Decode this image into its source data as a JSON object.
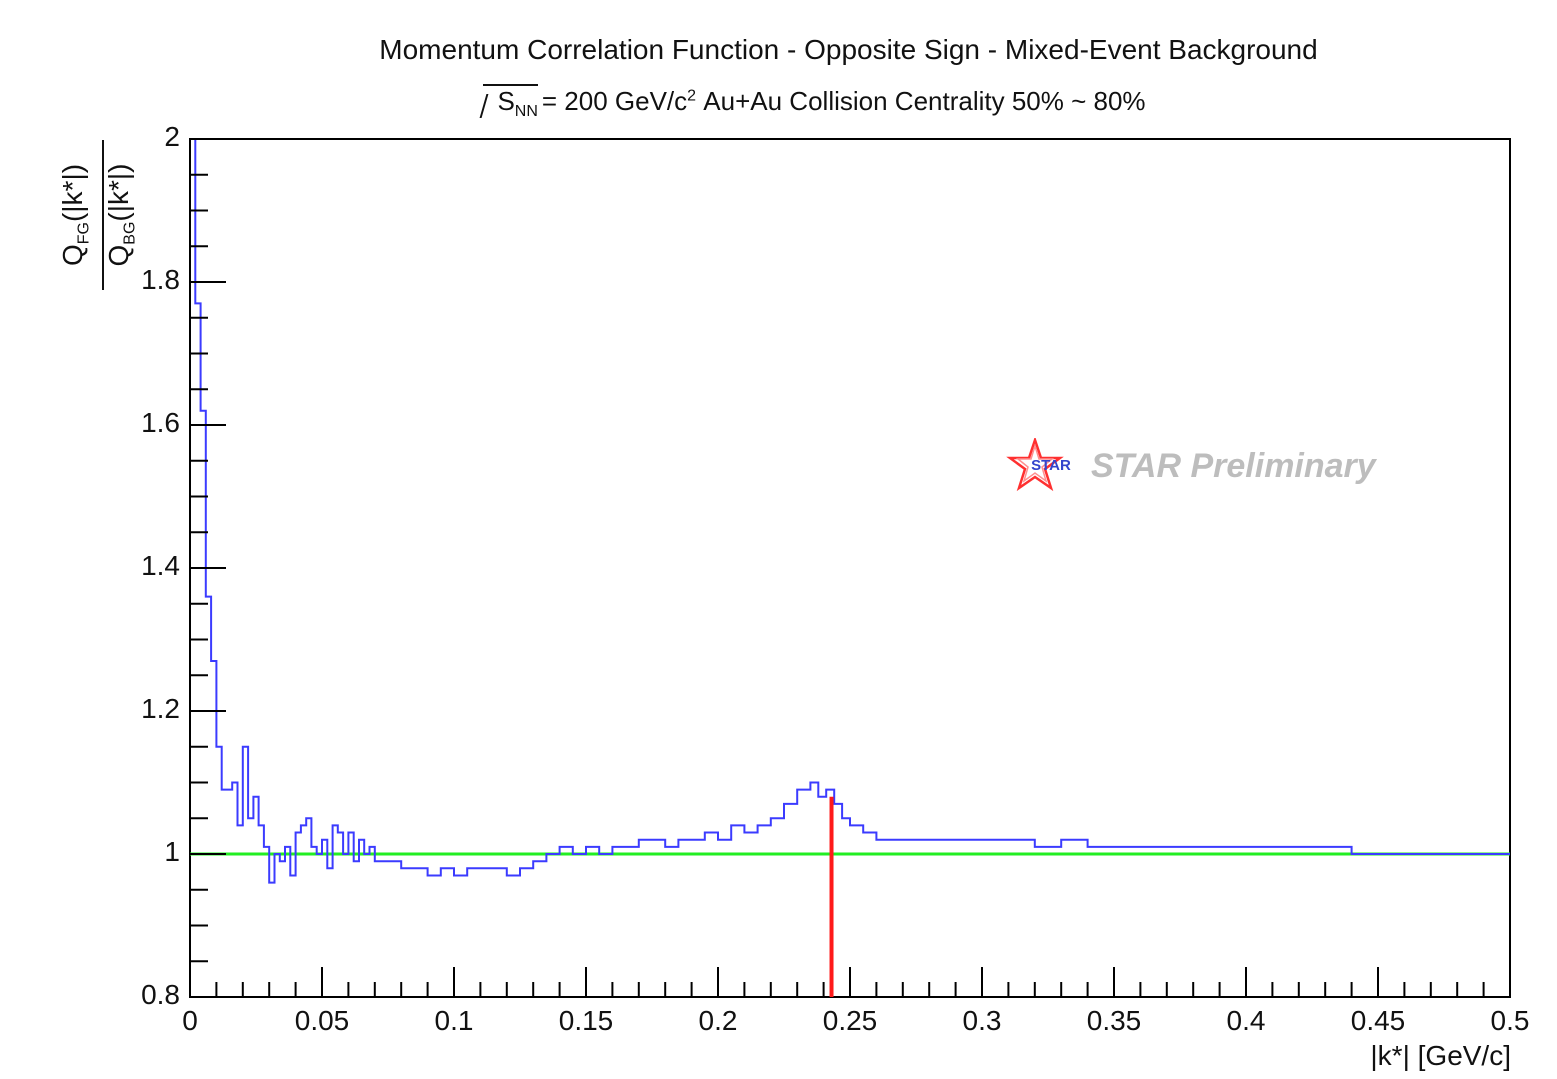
{
  "chart_data": {
    "type": "line",
    "title": "Momentum Correlation Function - Opposite Sign - Mixed-Event Background",
    "subtitle": {
      "sqrt_base": "S",
      "sqrt_sub": "NN",
      "energy": "= 200 GeV/c",
      "energy_sup": "2",
      "rest": "Au+Au Collision Centrality 50% ~ 80%"
    },
    "xlabel": "|k*| [GeV/c]",
    "ylabel": {
      "numerator": "Q",
      "numerator_sub": "FG",
      "numerator_arg": "(|k*|)",
      "denominator": "Q",
      "denominator_sub": "BG",
      "denominator_arg": "(|k*|)"
    },
    "xlim": [
      0,
      0.5
    ],
    "ylim": [
      0.8,
      2.0
    ],
    "x_ticks": [
      "0",
      "0.05",
      "0.1",
      "0.15",
      "0.2",
      "0.25",
      "0.3",
      "0.35",
      "0.4",
      "0.45",
      "0.5"
    ],
    "x_tick_values": [
      0,
      0.05,
      0.1,
      0.15,
      0.2,
      0.25,
      0.3,
      0.35,
      0.4,
      0.45,
      0.5
    ],
    "y_ticks": [
      "0.8",
      "1",
      "1.2",
      "1.4",
      "1.6",
      "1.8",
      "2"
    ],
    "y_tick_values": [
      0.8,
      1.0,
      1.2,
      1.4,
      1.6,
      1.8,
      2.0
    ],
    "grid": false,
    "series": [
      {
        "color": "#3b3bff",
        "style": "step",
        "x": [
          0.002,
          0.004,
          0.006,
          0.008,
          0.01,
          0.012,
          0.014,
          0.016,
          0.018,
          0.02,
          0.022,
          0.024,
          0.026,
          0.028,
          0.03,
          0.032,
          0.034,
          0.036,
          0.038,
          0.04,
          0.042,
          0.044,
          0.046,
          0.048,
          0.05,
          0.052,
          0.054,
          0.056,
          0.058,
          0.06,
          0.062,
          0.064,
          0.066,
          0.068,
          0.07,
          0.075,
          0.08,
          0.085,
          0.09,
          0.095,
          0.1,
          0.105,
          0.11,
          0.115,
          0.12,
          0.125,
          0.13,
          0.135,
          0.14,
          0.145,
          0.15,
          0.155,
          0.16,
          0.165,
          0.17,
          0.175,
          0.18,
          0.185,
          0.19,
          0.195,
          0.2,
          0.205,
          0.21,
          0.215,
          0.22,
          0.225,
          0.23,
          0.235,
          0.238,
          0.241,
          0.244,
          0.247,
          0.25,
          0.255,
          0.26,
          0.265,
          0.27,
          0.275,
          0.28,
          0.29,
          0.3,
          0.31,
          0.32,
          0.33,
          0.34,
          0.35,
          0.36,
          0.37,
          0.38,
          0.39,
          0.4,
          0.41,
          0.42,
          0.43,
          0.44,
          0.45,
          0.46,
          0.47,
          0.48,
          0.49,
          0.5
        ],
        "y": [
          2.0,
          1.77,
          1.62,
          1.36,
          1.27,
          1.15,
          1.09,
          1.09,
          1.1,
          1.04,
          1.15,
          1.05,
          1.08,
          1.04,
          1.01,
          0.96,
          1.0,
          0.99,
          1.01,
          0.97,
          1.03,
          1.04,
          1.05,
          1.01,
          1.0,
          1.02,
          0.98,
          1.04,
          1.03,
          1.0,
          1.03,
          0.99,
          1.02,
          1.0,
          1.01,
          0.99,
          0.99,
          0.98,
          0.98,
          0.97,
          0.98,
          0.97,
          0.98,
          0.98,
          0.98,
          0.97,
          0.98,
          0.99,
          1.0,
          1.01,
          1.0,
          1.01,
          1.0,
          1.01,
          1.01,
          1.02,
          1.02,
          1.01,
          1.02,
          1.02,
          1.03,
          1.02,
          1.04,
          1.03,
          1.04,
          1.05,
          1.07,
          1.09,
          1.1,
          1.08,
          1.09,
          1.07,
          1.05,
          1.04,
          1.03,
          1.02,
          1.02,
          1.02,
          1.02,
          1.02,
          1.02,
          1.02,
          1.02,
          1.01,
          1.02,
          1.01,
          1.01,
          1.01,
          1.01,
          1.01,
          1.01,
          1.01,
          1.01,
          1.01,
          1.01,
          1.0,
          1.0,
          1.0,
          1.0,
          1.0,
          1.0
        ]
      }
    ],
    "reference_line": {
      "y": 1.0,
      "color": "#22ee22"
    },
    "marker_line": {
      "x": 0.243,
      "y_from": 0.8,
      "y_to": 1.08,
      "color": "#ff1a1a"
    },
    "annotation": {
      "text": "STAR Preliminary",
      "logo_text": "STAR",
      "placement": "upper-right",
      "color": "#bdbdbd"
    }
  }
}
